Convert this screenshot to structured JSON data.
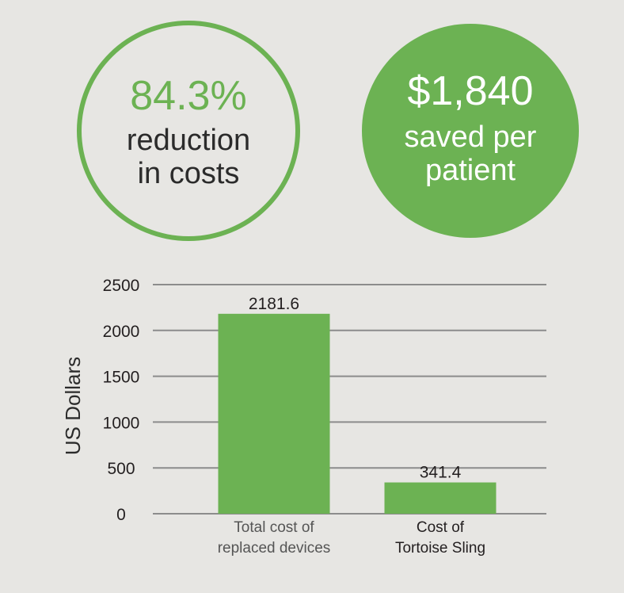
{
  "stats": {
    "reduction": {
      "value": "84.3%",
      "line1": "reduction",
      "line2": "in costs"
    },
    "savings": {
      "value": "$1,840",
      "line1": "saved per",
      "line2": "patient"
    }
  },
  "colors": {
    "accent": "#6cb253",
    "background": "#e7e6e3",
    "grid": "#8c8c8c",
    "text": "#2b2b2b",
    "tick_text": "#231f20",
    "category_text_1": "#555555"
  },
  "chart_data": {
    "type": "bar",
    "categories": [
      [
        "Total cost of",
        "replaced devices"
      ],
      [
        "Cost of",
        "Tortoise Sling"
      ]
    ],
    "values": [
      2181.6,
      341.4
    ],
    "value_labels": [
      "2181.6",
      "341.4"
    ],
    "ylabel": "US Dollars",
    "ylim": [
      0,
      2500
    ],
    "yticks": [
      "0",
      "500",
      "1000",
      "1500",
      "2000",
      "2500"
    ],
    "grid": true
  }
}
